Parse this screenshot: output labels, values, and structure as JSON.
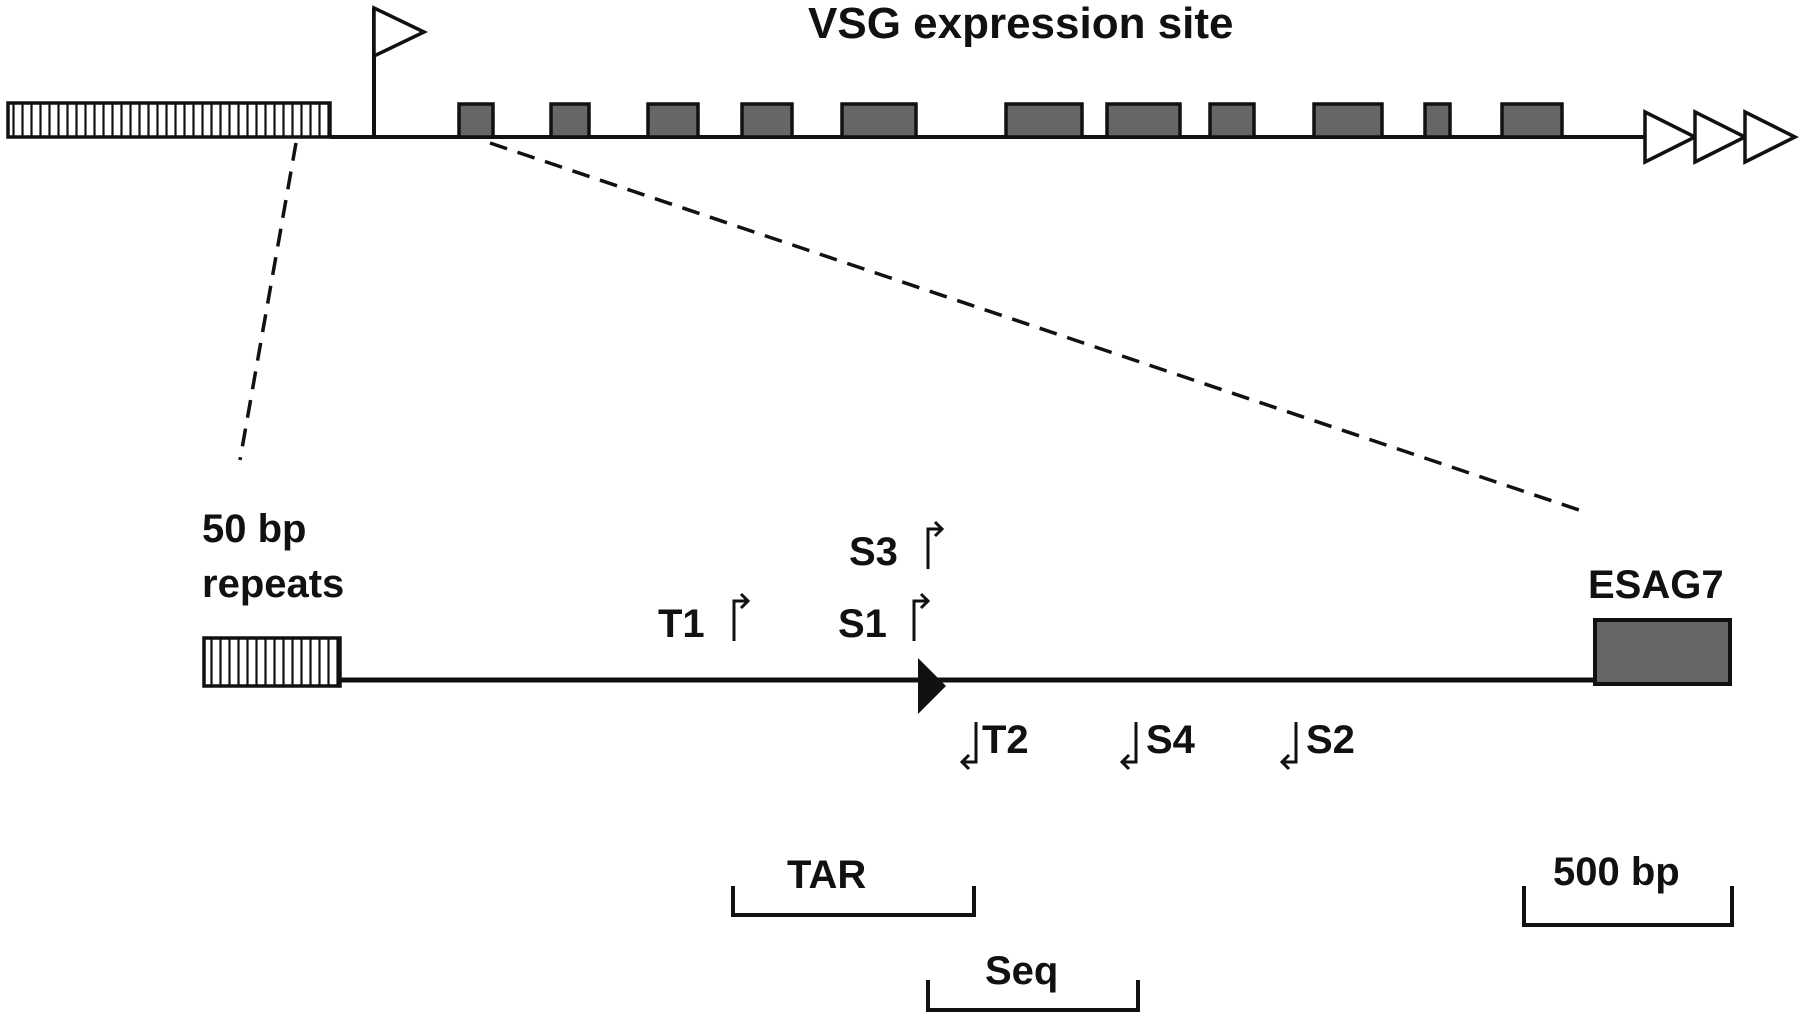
{
  "title": "VSG expression site",
  "labels": {
    "repeats_line1": "50 bp",
    "repeats_line2": "repeats",
    "esag7": "ESAG7",
    "scale_bar": "500 bp",
    "tar": "TAR",
    "seq": "Seq"
  },
  "primers_forward": [
    {
      "name": "T1"
    },
    {
      "name": "S1"
    },
    {
      "name": "S3"
    }
  ],
  "primers_reverse": [
    {
      "name": "T2"
    },
    {
      "name": "S4"
    },
    {
      "name": "S2"
    }
  ],
  "icons": {
    "promoter": "promoter-flag-icon",
    "telomere": "telomere-triangles-icon",
    "promoter_arrow": "promoter-arrow-icon"
  },
  "colors": {
    "gene_fill": "#666666",
    "line": "#111111",
    "background": "#ffffff"
  }
}
